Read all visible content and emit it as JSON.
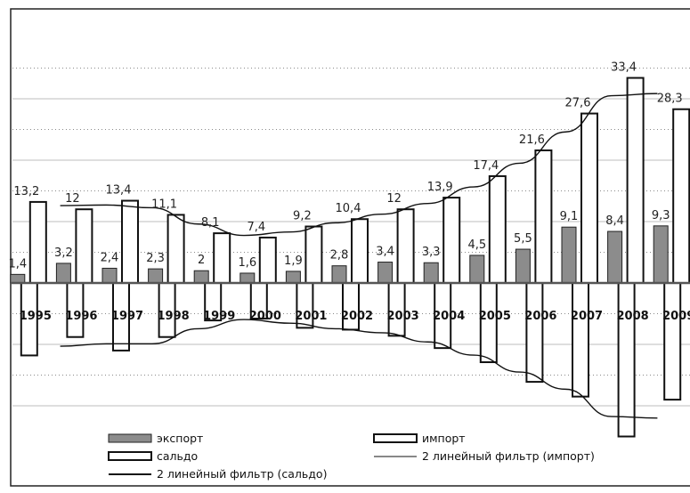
{
  "chart_data": {
    "type": "bar",
    "title": "",
    "xlabel": "",
    "ylabel": "",
    "categories": [
      "1995",
      "1996",
      "1997",
      "1998",
      "1999",
      "2000",
      "2001",
      "2002",
      "2003",
      "2004",
      "2005",
      "2006",
      "2007",
      "2008",
      "2009"
    ],
    "series": [
      {
        "name": "экспорт",
        "values": [
          1.4,
          3.2,
          2.4,
          2.3,
          2,
          1.6,
          1.9,
          2.8,
          3.4,
          3.3,
          4.5,
          5.5,
          9.1,
          8.4,
          9.3
        ]
      },
      {
        "name": "импорт",
        "values": [
          13.2,
          12,
          13.4,
          11.1,
          8.1,
          7.4,
          9.2,
          10.4,
          12,
          13.9,
          17.4,
          21.6,
          27.6,
          33.4,
          28.3
        ]
      },
      {
        "name": "сальдо",
        "values": [
          -11.8,
          -8.8,
          -11,
          -8.8,
          -6.1,
          -5.8,
          -7.3,
          -7.6,
          -8.6,
          -10.6,
          -12.9,
          -16.1,
          -18.5,
          -25,
          -19
        ]
      }
    ],
    "data_labels": {
      "export": [
        "1,4",
        "3,2",
        "2,4",
        "2,3",
        "2",
        "1,6",
        "1,9",
        "2,8",
        "3,4",
        "3,3",
        "4,5",
        "5,5",
        "9,1",
        "8,4",
        "9,3"
      ],
      "import": [
        "13,2",
        "12",
        "13,4",
        "11,1",
        "8,1",
        "7,4",
        "9,2",
        "10,4",
        "12",
        "13,9",
        "17,4",
        "21,6",
        "27,6",
        "33,4",
        "28,3"
      ]
    },
    "trendlines": [
      {
        "name": "2 линейный фильтр (импорт)",
        "of": "импорт",
        "period": 2
      },
      {
        "name": "2 линейный фильтр (сальдо)",
        "of": "сальдо",
        "period": 2
      }
    ],
    "ylim": [
      -26,
      35
    ],
    "grid": true,
    "legend_position": "bottom",
    "colors": {
      "export": "#8c8c8c",
      "import": "#ffffff",
      "saldo": "#ffffff",
      "outline": "#111111",
      "grid": "#bdbdbd"
    }
  }
}
